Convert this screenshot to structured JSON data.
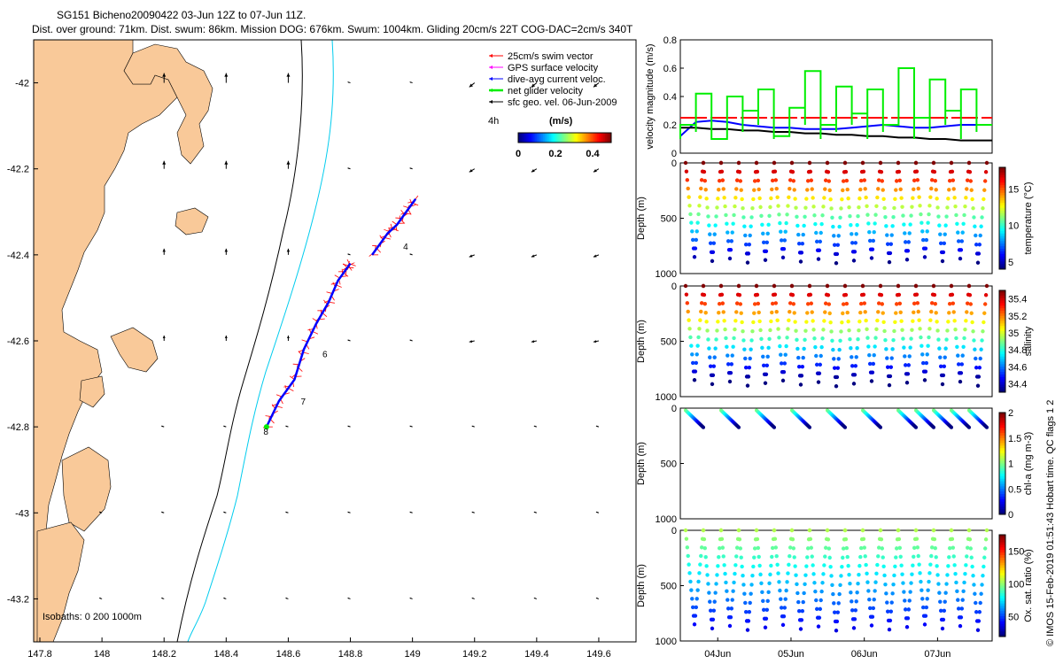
{
  "header": {
    "line1": "SG151 Bicheno20090422 03-Jun 12Z to 07-Jun 11Z.",
    "line2": "Dist. over ground: 71km. Dist. swum: 86km. Mission DOG: 676km. Swum: 1004km. Gliding 20cm/s 22T COG-DAC=2cm/s 340T"
  },
  "copyright": "© IMOS 15-Feb-2019 01:51:43 Hobart time. QC flags 1  2",
  "colors": {
    "land": "#f9c999",
    "swim_vector": "#ff0000",
    "gps": "#ff00ff",
    "current": "#0000ff",
    "net": "#00ee00",
    "sfc_geo": "#000000",
    "isobath_200": "#000000",
    "isobath_1000": "#00ccee"
  },
  "chart_data": [
    {
      "type": "scatter",
      "name": "map",
      "x_ticks": [
        "147.8",
        "148",
        "148.2",
        "148.4",
        "148.6",
        "148.8",
        "149",
        "149.2",
        "149.4",
        "149.6"
      ],
      "y_ticks": [
        "-42",
        "-42.2",
        "-42.4",
        "-42.6",
        "-42.8",
        "-43",
        "-43.2"
      ],
      "xlim": [
        147.78,
        149.72
      ],
      "ylim": [
        -43.3,
        -41.9
      ],
      "legend": [
        {
          "label": "25cm/s swim vector",
          "color": "#ff0000",
          "arrow": true
        },
        {
          "label": "GPS surface velocity",
          "color": "#ff00ff",
          "arrow": true
        },
        {
          "label": "dive-avg current veloc.",
          "color": "#0000ff",
          "arrow": true
        },
        {
          "label": "net glider velocity",
          "color": "#00ee00",
          "arrow": true
        },
        {
          "label": "sfc geo. vel. 06-Jun-2009",
          "color": "#000000",
          "arrow": true
        }
      ],
      "legend_title": "4h",
      "colorbar": {
        "label": "(m/s)",
        "ticks": [
          "0",
          "0.2",
          "0.4"
        ],
        "range": [
          0,
          0.5
        ]
      },
      "isobaths_label": "Isobaths: 0   200  1000m",
      "track_labels": [
        {
          "text": "4",
          "x": 148.97,
          "y": -42.38
        },
        {
          "text": "6",
          "x": 148.71,
          "y": -42.63
        },
        {
          "text": "7",
          "x": 148.64,
          "y": -42.74
        },
        {
          "text": "8",
          "x": 148.52,
          "y": -42.81
        }
      ],
      "track": [
        [
          148.53,
          -42.8
        ],
        [
          148.57,
          -42.74
        ],
        [
          148.62,
          -42.69
        ],
        [
          148.65,
          -42.62
        ],
        [
          148.69,
          -42.56
        ],
        [
          148.73,
          -42.51
        ],
        [
          148.76,
          -42.46
        ],
        [
          148.79,
          -42.43
        ],
        [
          148.8,
          -42.42
        ]
      ],
      "track2": [
        [
          148.87,
          -42.4
        ],
        [
          148.92,
          -42.35
        ],
        [
          148.95,
          -42.33
        ],
        [
          148.98,
          -42.3
        ],
        [
          149.01,
          -42.27
        ]
      ]
    },
    {
      "type": "line",
      "name": "velocity",
      "ylabel": "velocity magnitude (m/s)",
      "ylim": [
        0,
        0.8
      ],
      "y_ticks": [
        "0",
        "0.2",
        "0.4",
        "0.6",
        "0.8"
      ],
      "series": [
        {
          "color": "#ff0000",
          "values": [
            0.25,
            0.25,
            0.25,
            0.25,
            0.25,
            0.25,
            0.25,
            0.25,
            0.25,
            0.25,
            0.25,
            0.25,
            0.25,
            0.25,
            0.25,
            0.25,
            0.25,
            0.25,
            0.25,
            0.25
          ]
        },
        {
          "color": "#0000ff",
          "values": [
            0.12,
            0.22,
            0.23,
            0.22,
            0.2,
            0.19,
            0.18,
            0.18,
            0.17,
            0.17,
            0.17,
            0.18,
            0.19,
            0.2,
            0.19,
            0.18,
            0.18,
            0.19,
            0.2,
            0.2
          ]
        },
        {
          "color": "#000000",
          "values": [
            0.18,
            0.18,
            0.17,
            0.17,
            0.16,
            0.16,
            0.15,
            0.15,
            0.14,
            0.14,
            0.13,
            0.13,
            0.12,
            0.12,
            0.11,
            0.11,
            0.1,
            0.1,
            0.09,
            0.09
          ]
        },
        {
          "color": "#00ee00",
          "values": [
            0.2,
            0.42,
            0.1,
            0.4,
            0.3,
            0.45,
            0.12,
            0.32,
            0.58,
            0.2,
            0.47,
            0.28,
            0.45,
            0.2,
            0.6,
            0.25,
            0.52,
            0.3,
            0.45,
            0.2
          ]
        }
      ]
    },
    {
      "type": "scatter",
      "name": "temperature",
      "ylabel": "Depth (m)",
      "cbar_label": "temperature (°C)",
      "ylim": [
        0,
        1000
      ],
      "y_ticks": [
        "0",
        "500",
        "1000"
      ],
      "cbar_ticks": [
        "5",
        "10",
        "15"
      ],
      "cbar_range": [
        4,
        18
      ]
    },
    {
      "type": "scatter",
      "name": "salinity",
      "ylabel": "Depth (m)",
      "cbar_label": "salinity",
      "ylim": [
        0,
        1000
      ],
      "y_ticks": [
        "0",
        "500",
        "1000"
      ],
      "cbar_ticks": [
        "34.4",
        "34.6",
        "34.8",
        "35",
        "35.2",
        "35.4"
      ],
      "cbar_range": [
        34.3,
        35.5
      ]
    },
    {
      "type": "scatter",
      "name": "chla",
      "ylabel": "Depth (m)",
      "cbar_label": "chl-a (mg m-3)",
      "ylim": [
        0,
        1000
      ],
      "y_ticks": [
        "0",
        "500",
        "1000"
      ],
      "cbar_ticks": [
        "0",
        "0.5",
        "1",
        "1.5",
        "2"
      ],
      "cbar_range": [
        0,
        2
      ]
    },
    {
      "type": "scatter",
      "name": "oxygen",
      "ylabel": "Depth (m)",
      "cbar_label": "Ox. sat. ratio (%)",
      "ylim": [
        0,
        1000
      ],
      "y_ticks": [
        "0",
        "500",
        "1000"
      ],
      "cbar_ticks": [
        "50",
        "100",
        "150"
      ],
      "cbar_range": [
        20,
        175
      ]
    }
  ],
  "time_axis": {
    "ticks": [
      "04Jun",
      "05Jun",
      "06Jun",
      "07Jun"
    ],
    "positions": [
      0.12,
      0.355,
      0.59,
      0.825
    ]
  }
}
